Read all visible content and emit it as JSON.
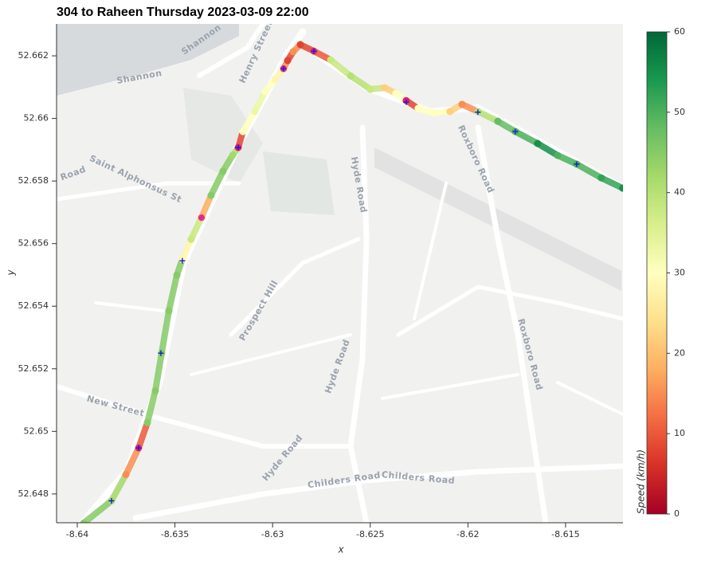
{
  "chart_data": {
    "type": "scatter",
    "title": "304 to Raheen Thursday 2023-03-09 22:00",
    "xlabel": "x",
    "ylabel": "y",
    "xlim": [
      -8.64106,
      -8.61206
    ],
    "ylim": [
      52.64708,
      52.66302
    ],
    "xticks": [
      -8.64,
      -8.635,
      -8.63,
      -8.625,
      -8.62,
      -8.615
    ],
    "yticks": [
      52.648,
      52.65,
      52.652,
      52.654,
      52.656,
      52.658,
      52.66,
      52.662
    ],
    "x": [
      -8.63967,
      -8.63825,
      -8.63751,
      -8.63686,
      -8.63641,
      -8.636,
      -8.63568,
      -8.63531,
      -8.6349,
      -8.63462,
      -8.63417,
      -8.63364,
      -8.63315,
      -8.63254,
      -8.63205,
      -8.63176,
      -8.63152,
      -8.63091,
      -8.63038,
      -8.62989,
      -8.62944,
      -8.62923,
      -8.62895,
      -8.62858,
      -8.62789,
      -8.62703,
      -8.62601,
      -8.62499,
      -8.62426,
      -8.62369,
      -8.62316,
      -8.62255,
      -8.62173,
      -8.62092,
      -8.6203,
      -8.61949,
      -8.61847,
      -8.61757,
      -8.61643,
      -8.61541,
      -8.61443,
      -8.61317,
      -8.61207
    ],
    "y": [
      52.64707,
      52.64778,
      52.64862,
      52.64947,
      52.65028,
      52.6513,
      52.6525,
      52.65385,
      52.65499,
      52.6555,
      52.65614,
      52.65683,
      52.65754,
      52.65831,
      52.65882,
      52.65907,
      52.65958,
      52.66022,
      52.66085,
      52.66124,
      52.66159,
      52.66185,
      52.66213,
      52.66236,
      52.66215,
      52.66187,
      52.66136,
      52.66093,
      52.66098,
      52.6608,
      52.66057,
      52.66032,
      52.66017,
      52.66022,
      52.66045,
      52.66022,
      52.65991,
      52.65958,
      52.6592,
      52.65882,
      52.65854,
      52.6581,
      52.65777
    ],
    "speed": [
      45,
      42,
      15,
      10,
      45,
      45,
      45,
      45,
      45,
      28,
      38,
      18,
      45,
      45,
      42,
      8,
      30,
      33,
      30,
      28,
      15,
      8,
      15,
      8,
      10,
      38,
      40,
      38,
      22,
      30,
      8,
      30,
      30,
      22,
      15,
      40,
      48,
      50,
      55,
      50,
      50,
      52,
      55
    ],
    "colormap": [
      "#a50026",
      "#d73027",
      "#f46d43",
      "#fdae61",
      "#fee08b",
      "#ffffbf",
      "#d9ef8b",
      "#a6d96a",
      "#66bd63",
      "#1a9850",
      "#006837"
    ],
    "colorbar": {
      "label": "Speed (km/h)",
      "lim": [
        0,
        60
      ],
      "ticks": [
        0,
        10,
        20,
        30,
        40,
        50,
        60
      ]
    },
    "stops": {
      "color": "#e0109a",
      "x": [
        -8.63686,
        -8.63364,
        -8.63176,
        -8.62944,
        -8.62789,
        -8.62316
      ],
      "y": [
        52.64947,
        52.65683,
        52.65907,
        52.66159,
        52.66215,
        52.66057
      ]
    },
    "crosses": {
      "color": "#1020d0",
      "x": [
        -8.63825,
        -8.63686,
        -8.63572,
        -8.63462,
        -8.63176,
        -8.62944,
        -8.62789,
        -8.62316,
        -8.61949,
        -8.61757,
        -8.61443
      ],
      "y": [
        52.64778,
        52.64947,
        52.6525,
        52.65545,
        52.65907,
        52.66159,
        52.66215,
        52.66052,
        52.6602,
        52.65958,
        52.65854
      ]
    },
    "map_labels": [
      "Shannon",
      "Shannon",
      "Henry Street",
      "Saint Alphonsus St",
      "Road",
      "Hyde Road",
      "Roxboro Road",
      "Roxboro Road",
      "Prospect Hill",
      "Hyde Road",
      "New Street",
      "Hyde Road",
      "Childers Road",
      "Childers Road"
    ]
  }
}
